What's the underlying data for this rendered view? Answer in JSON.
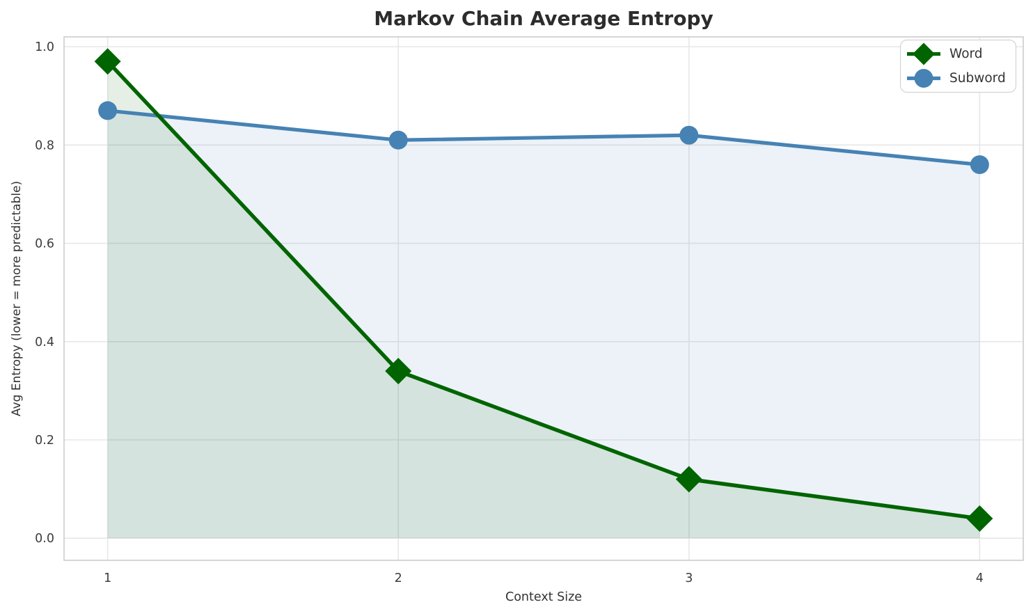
{
  "chart_data": {
    "type": "line",
    "title": "Markov Chain Average Entropy",
    "xlabel": "Context Size",
    "ylabel": "Avg Entropy (lower = more predictable)",
    "x": [
      1,
      2,
      3,
      4
    ],
    "series": [
      {
        "name": "Word",
        "color": "#006400",
        "marker": "diamond",
        "values": [
          0.97,
          0.34,
          0.12,
          0.04
        ],
        "fill_alpha": 0.1,
        "line_width": 5.5
      },
      {
        "name": "Subword",
        "color": "#4682b4",
        "marker": "circle",
        "values": [
          0.87,
          0.81,
          0.82,
          0.76
        ],
        "fill_alpha": 0.1,
        "line_width": 5.2
      }
    ],
    "xticks": [
      1,
      2,
      3,
      4
    ],
    "xtick_labels": [
      "1",
      "2",
      "3",
      "4"
    ],
    "yticks": [
      0,
      0.2,
      0.4,
      0.6,
      0.8,
      1.0
    ],
    "ytick_labels": [
      "0.0",
      "0.2",
      "0.4",
      "0.6",
      "0.8",
      "1.0"
    ],
    "xlim": [
      0.85,
      4.15
    ],
    "ylim": [
      -0.045,
      1.02
    ],
    "grid": true,
    "fill_to_zero": true,
    "legend_position": "upper right"
  },
  "style": {
    "grid_color": "#e7e7e7",
    "spine_color": "#cccccc",
    "tick_color": "#3c3c3c",
    "title_color": "#2c2c2c",
    "label_color": "#333333",
    "background": "#ffffff"
  }
}
